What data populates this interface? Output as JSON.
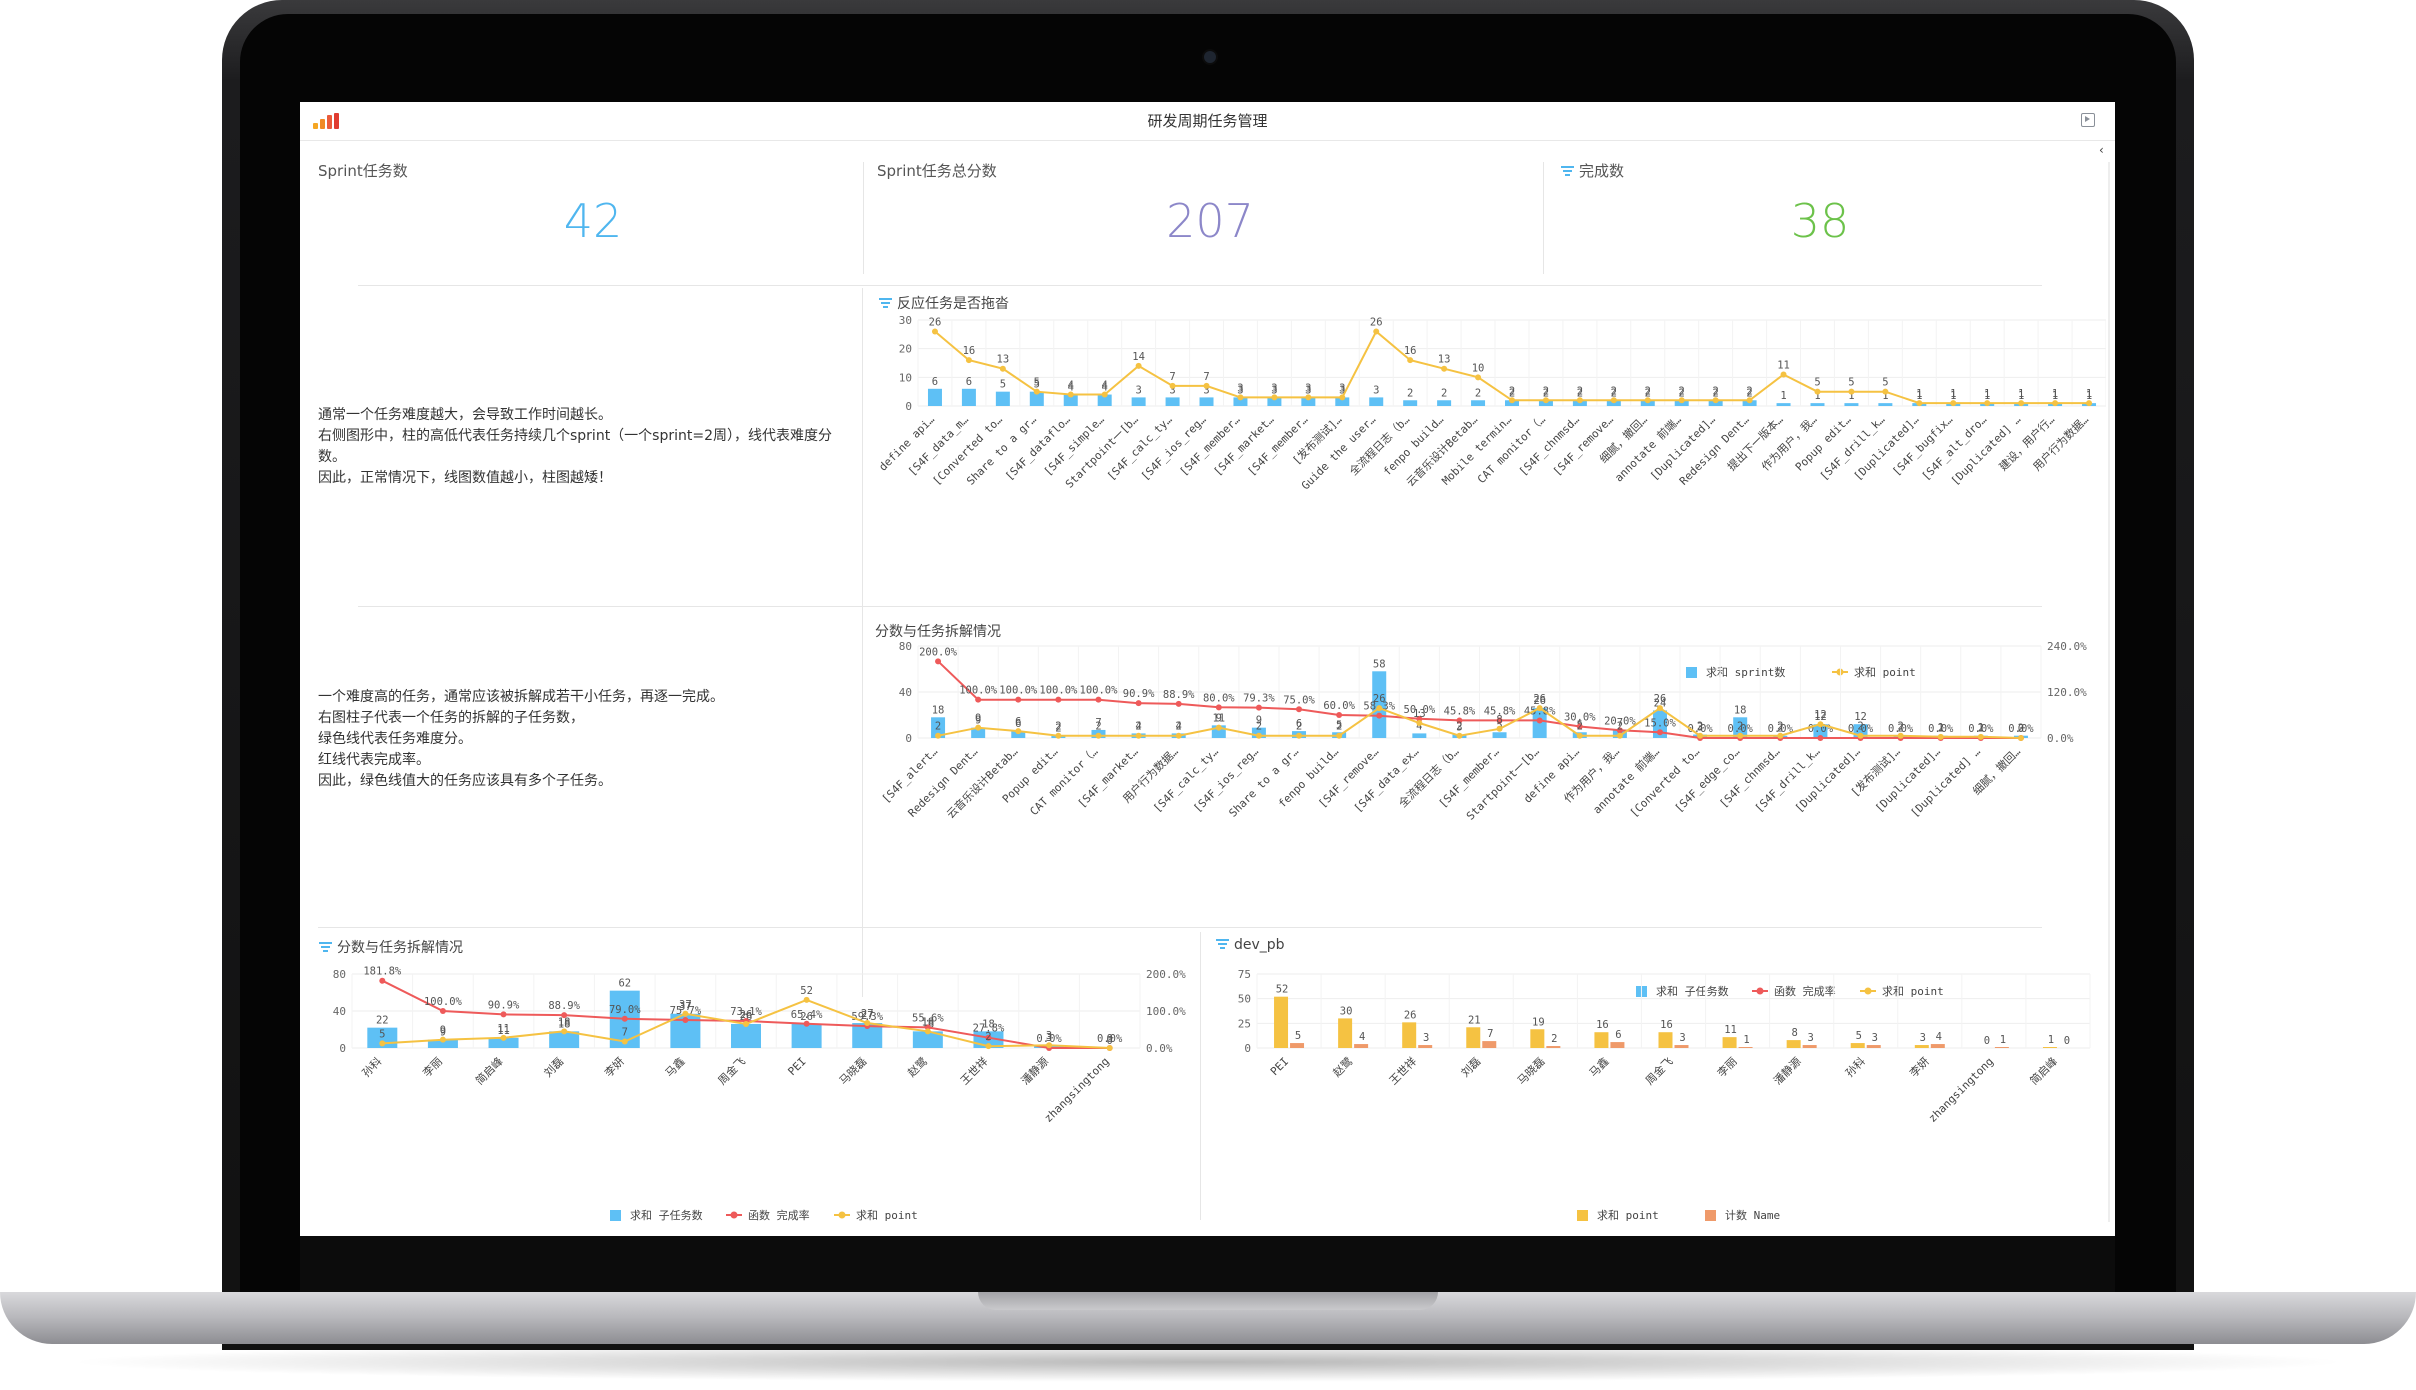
{
  "app": {
    "title": "研发周期任务管理"
  },
  "kpis": [
    {
      "label": "Sprint任务数",
      "value": "42",
      "color": "#4fb6ef",
      "icon": ""
    },
    {
      "label": "Sprint任务总分数",
      "value": "207",
      "color": "#8c87c9",
      "icon": ""
    },
    {
      "label": "完成数",
      "value": "38",
      "color": "#6cc24a",
      "icon": "layers-icon"
    }
  ],
  "section1": {
    "desc": [
      "通常一个任务难度越大，会导致工作时间越长。",
      "右侧图形中，柱的高低代表任务持续几个sprint（一个sprint=2周），线代表难度分数。",
      "因此，正常情况下，线图数值越小，柱图越矮！"
    ],
    "title": "反应任务是否拖沓"
  },
  "section2": {
    "desc": [
      "一个难度高的任务，通常应该被拆解成若干小任务，再逐一完成。",
      "右图柱子代表一个任务的拆解的子任务数，",
      "绿色线代表任务难度分。",
      "红线代表完成率。",
      "因此，绿色线值大的任务应该具有多个子任务。"
    ],
    "title": "分数与任务拆解情况"
  },
  "section3": {
    "title": "分数与任务拆解情况"
  },
  "section4": {
    "title": "dev_pb"
  },
  "colors": {
    "blue": "#5ec0f5",
    "yellow": "#f5c242",
    "red": "#ee5a5a",
    "orange": "#ef9a6a",
    "grid": "#eeeeee"
  },
  "chart_data": [
    {
      "type": "bar",
      "title": "反应任务是否拖沓",
      "legend": [
        "求和 sprint数",
        "求和 point"
      ],
      "ylim": [
        0,
        30
      ],
      "yticks": [
        "30",
        "20",
        "10",
        "0"
      ],
      "categories": [
        "define api…",
        "[S4F_data_m…",
        "[Converted to…",
        "Share to a gr…",
        "[S4F_dataflo…",
        "[S4F_simple…",
        "Startpoint一[b…",
        "[S4F_calc_ty…",
        "[S4F_ios_reg…",
        "[S4F_member…",
        "[S4F_market…",
        "[S4F_member…",
        "[发布测试]…",
        "Guide the user…",
        "全流程日志（b…",
        "fenpo build…",
        "云音乐设计Betab…",
        "Mobile termin…",
        "CAT monitor（…",
        "[S4F_chnmsd…",
        "[S4F_remove…",
        "细腻，撤回…",
        "annotate 前端…",
        "[Duplicated]…",
        "Redesign Dent…",
        "提出下一版本…",
        "作为用户，我…",
        "Popup edit…",
        "[S4F_drill_k…",
        "[Duplicated]…",
        "[S4F_bugfix…",
        "[S4F_alt_dro…",
        "[Duplicated] …",
        "建设，用户行…",
        "用户行为数据…"
      ],
      "series": [
        {
          "name": "求和 sprint数",
          "values": [
            6,
            6,
            5,
            5,
            4,
            4,
            3,
            3,
            3,
            3,
            3,
            3,
            3,
            3,
            2,
            2,
            2,
            2,
            2,
            2,
            2,
            2,
            2,
            2,
            2,
            1,
            1,
            1,
            1,
            1,
            1,
            1,
            1,
            1,
            1
          ]
        },
        {
          "name": "求和 point",
          "values": [
            26,
            16,
            13,
            5,
            4,
            4,
            14,
            7,
            7,
            3,
            3,
            3,
            3,
            26,
            16,
            13,
            10,
            2,
            2,
            2,
            2,
            2,
            2,
            2,
            2,
            11,
            5,
            5,
            5,
            1,
            1,
            1,
            1,
            1,
            1
          ]
        }
      ]
    },
    {
      "type": "bar",
      "title": "分数与任务拆解情况",
      "legend": [
        "求和 子任务数",
        "函数 完成率",
        "求和 point"
      ],
      "ylim": [
        0,
        80
      ],
      "yticks": [
        "80",
        "40",
        "0"
      ],
      "y2ticks": [
        "240.0%",
        "120.0%",
        "0.0%"
      ],
      "categories": [
        "[S4F_alert…",
        "Redesign Dent…",
        "云音乐设计Betab…",
        "Popup edit…",
        "CAT monitor（…",
        "[S4F_market…",
        "用户行为数据…",
        "[S4F_calc_ty…",
        "[S4F_ios_reg…",
        "Share to a gr…",
        "fenpo build…",
        "[S4F_remove…",
        "[S4F_data_ex…",
        "全流程日志（b…",
        "[S4F_member…",
        "Startpoint一[b…",
        "define api…",
        "作为用户，我…",
        "annotate 前端…",
        "[Converted to…",
        "[S4F_edge_co…",
        "[S4F_chnmsd…",
        "[S4F_drill_k…",
        "[Duplicated]…",
        "[发布测试]…",
        "[Duplicated]…",
        "[Duplicated] …",
        "细腻，撤回…"
      ],
      "series": [
        {
          "name": "求和 子任务数",
          "values": [
            18,
            9,
            6,
            2,
            7,
            4,
            4,
            11,
            9,
            6,
            5,
            58,
            4,
            3,
            5,
            26,
            5,
            7,
            24,
            3,
            18,
            2,
            12,
            12,
            2,
            2,
            2,
            2
          ]
        },
        {
          "name": "函数 完成率",
          "values": [
            200,
            100,
            100,
            100,
            100,
            90.9,
            88.9,
            80,
            79.3,
            75,
            60,
            58.3,
            50,
            45.8,
            45.8,
            45.8,
            30,
            20,
            15,
            0,
            0,
            0,
            0,
            0,
            0,
            0,
            0,
            0
          ]
        },
        {
          "name": "求和 point",
          "values": [
            2,
            9,
            6,
            2,
            2,
            2,
            2,
            9,
            2,
            2,
            2,
            26,
            13,
            2,
            8,
            26,
            2,
            2,
            26,
            2,
            2,
            2,
            12,
            2,
            2,
            1,
            1,
            0
          ]
        }
      ]
    },
    {
      "type": "bar",
      "title": "分数与任务拆解情况",
      "legend": [
        "求和 子任务数",
        "函数 完成率",
        "求和 point"
      ],
      "ylim": [
        0,
        80
      ],
      "yticks": [
        "80",
        "40",
        "0"
      ],
      "y2ticks": [
        "200.0%",
        "100.0%",
        "0.0%"
      ],
      "categories": [
        "孙科",
        "李丽",
        "简启峰",
        "刘磊",
        "李妍",
        "马鑫",
        "周金飞",
        "PEI",
        "马晓磊",
        "赵鹭",
        "王世祥",
        "潘静源",
        "zhangsingtong"
      ],
      "series": [
        {
          "name": "求和 子任务数",
          "values": [
            22,
            9,
            11,
            18,
            62,
            37,
            26,
            26,
            27,
            18,
            18,
            3,
            0
          ]
        },
        {
          "name": "函数 完成率",
          "values": [
            181.8,
            100,
            90.9,
            88.9,
            79.0,
            75.7,
            73.1,
            65.4,
            59.3,
            55.6,
            27.8,
            0,
            0
          ]
        },
        {
          "name": "求和 point",
          "values": [
            5,
            9,
            11,
            18,
            7,
            37,
            26,
            52,
            27,
            18,
            2,
            3,
            0
          ]
        }
      ]
    },
    {
      "type": "bar",
      "title": "dev_pb",
      "legend": [
        "求和 point",
        "计数 Name"
      ],
      "ylim": [
        0,
        75
      ],
      "yticks": [
        "75",
        "50",
        "25",
        "0"
      ],
      "categories": [
        "PEI",
        "赵鹭",
        "王世祥",
        "刘磊",
        "马晓磊",
        "马鑫",
        "周金飞",
        "李丽",
        "潘静源",
        "孙科",
        "李妍",
        "zhangsingtong",
        "简启峰"
      ],
      "series": [
        {
          "name": "求和 point",
          "values": [
            52,
            30,
            26,
            21,
            19,
            16,
            16,
            11,
            8,
            5,
            3,
            0,
            1
          ]
        },
        {
          "name": "计数 Name",
          "values": [
            5,
            4,
            3,
            7,
            2,
            6,
            3,
            1,
            3,
            3,
            4,
            1,
            0
          ]
        }
      ]
    }
  ]
}
